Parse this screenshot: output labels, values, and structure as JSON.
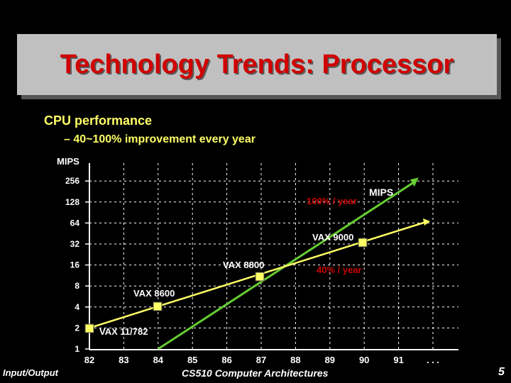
{
  "slide": {
    "title": "Technology Trends: Processor",
    "bullet1": "CPU performance",
    "bullet2": "– 40~100% improvement every year",
    "footer_left": "Input/Output",
    "footer_center": "CS510 Computer Architectures",
    "page_number": "5"
  },
  "colors": {
    "title_text": "#d00000",
    "title_bg": "#c0c0c0",
    "bullet_text": "#ffff66",
    "line_100pct": "#66cc33",
    "line_40pct": "#ffff66",
    "annotation_red": "#cc0000",
    "grid": "#ffffff"
  },
  "chart_data": {
    "type": "line",
    "ylabel": "MIPS",
    "y_scale": "log2",
    "x_categories": [
      "82",
      "83",
      "84",
      "85",
      "86",
      "87",
      "88",
      "89",
      "90",
      "91",
      ". . ."
    ],
    "y_ticks": [
      "1",
      "2",
      "4",
      "8",
      "16",
      "32",
      "64",
      "128",
      "256"
    ],
    "series": [
      {
        "label": "40% / year",
        "points": [
          {
            "x": "82",
            "y": 2,
            "label": "VAX 11/782"
          },
          {
            "x": "84",
            "y": 4,
            "label": "VAX 8600"
          },
          {
            "x": "87",
            "y": 10,
            "label": "VAX 8800"
          },
          {
            "x": "90",
            "y": 30,
            "label": "VAX 9000"
          }
        ]
      },
      {
        "label": "100% / year",
        "points": [
          {
            "x": "84",
            "y": 1
          },
          {
            "x": "91.5",
            "y": 256
          }
        ]
      }
    ],
    "annotations": [
      {
        "text": "MIPS"
      }
    ]
  }
}
